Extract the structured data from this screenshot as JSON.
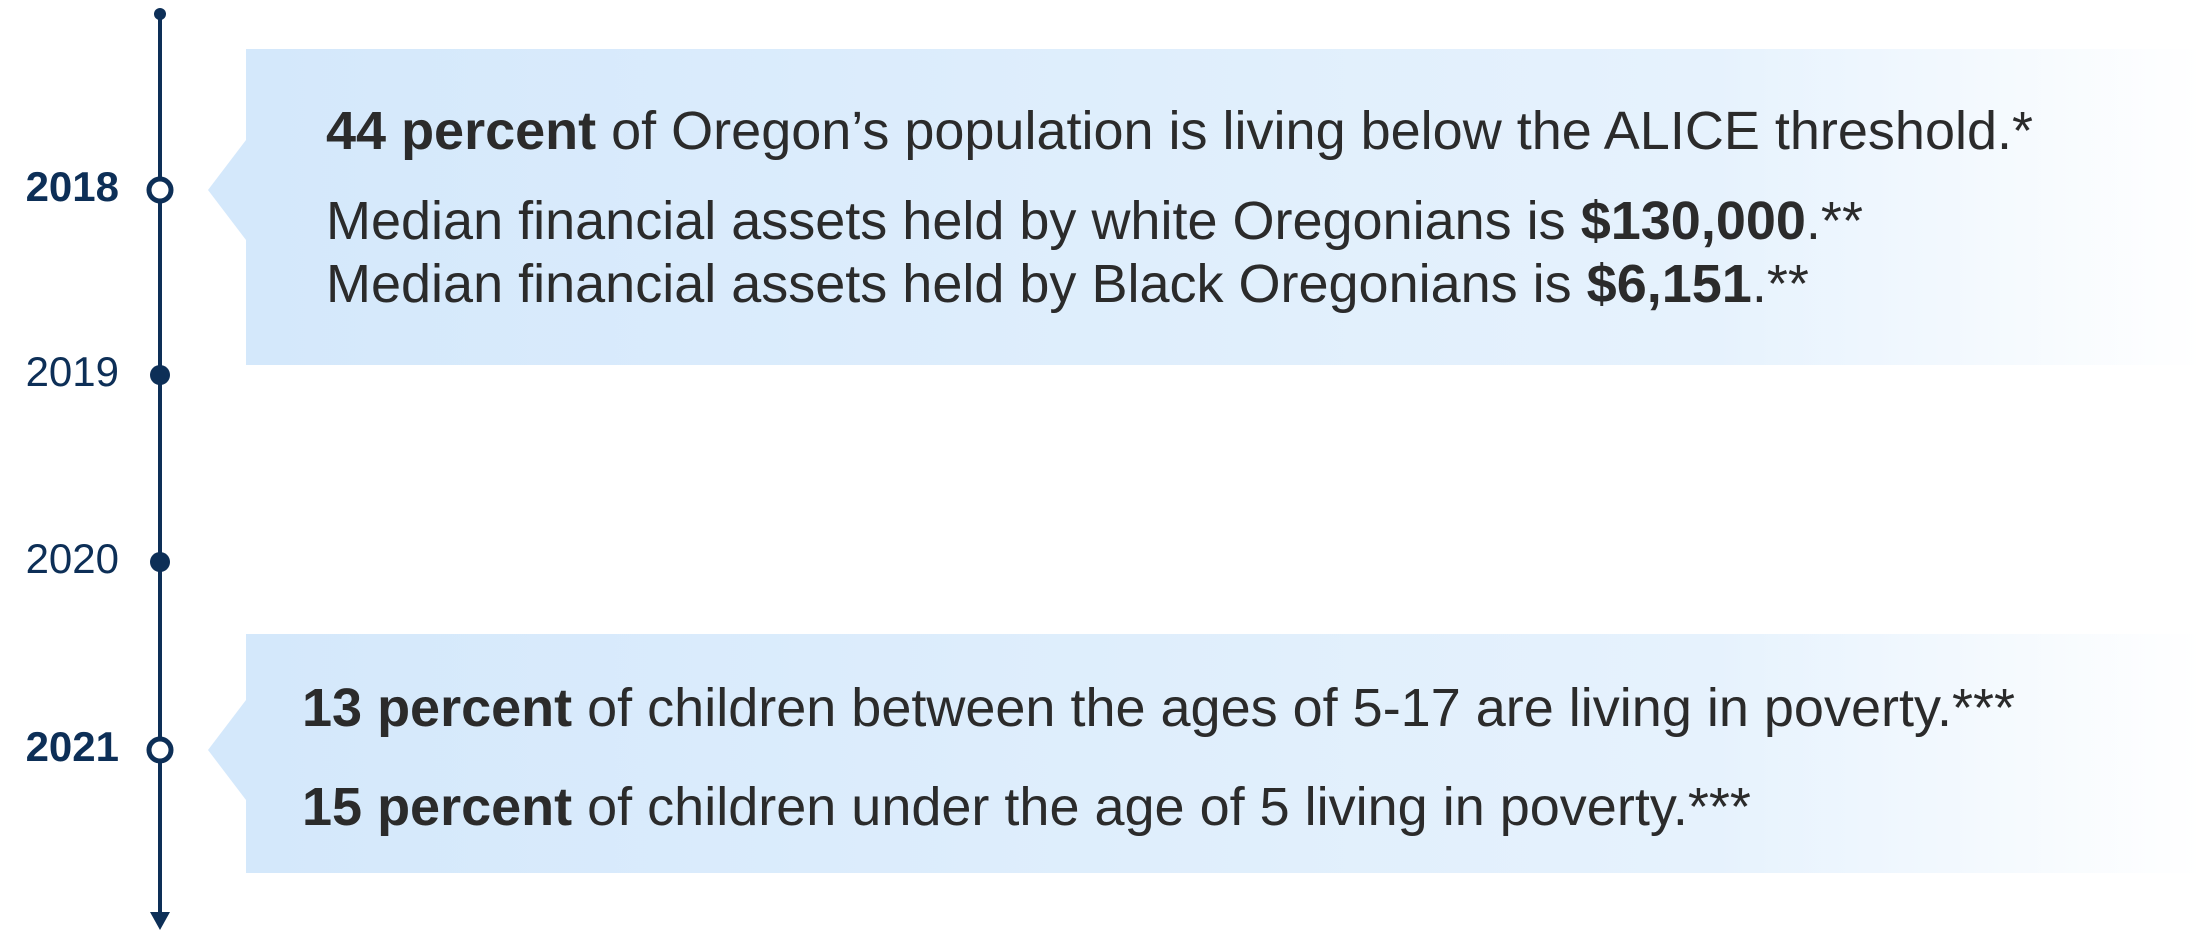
{
  "timeline": {
    "years": [
      {
        "label": "2018",
        "marker": "hollow",
        "lines": [
          [
            {
              "text": "44 percent",
              "bold": true
            },
            {
              "text": " of Oregon’s population is living below the ALICE threshold.*"
            }
          ],
          [
            {
              "text": "Median financial assets held by white Oregonians is "
            },
            {
              "text": "$130,000",
              "bold": true
            },
            {
              "text": ".**"
            }
          ],
          [
            {
              "text": "Median financial assets held by Black Oregonians is "
            },
            {
              "text": "$6,151",
              "bold": true
            },
            {
              "text": ".**"
            }
          ]
        ]
      },
      {
        "label": "2019",
        "marker": "filled"
      },
      {
        "label": "2020",
        "marker": "filled"
      },
      {
        "label": "2021",
        "marker": "hollow",
        "lines": [
          [
            {
              "text": "13 percent",
              "bold": true
            },
            {
              "text": " of children between the ages of 5-17 are living in poverty.***"
            }
          ],
          [
            {
              "text": "15 percent",
              "bold": true
            },
            {
              "text": " of children under the age of 5 living in poverty.***"
            }
          ]
        ]
      }
    ]
  }
}
